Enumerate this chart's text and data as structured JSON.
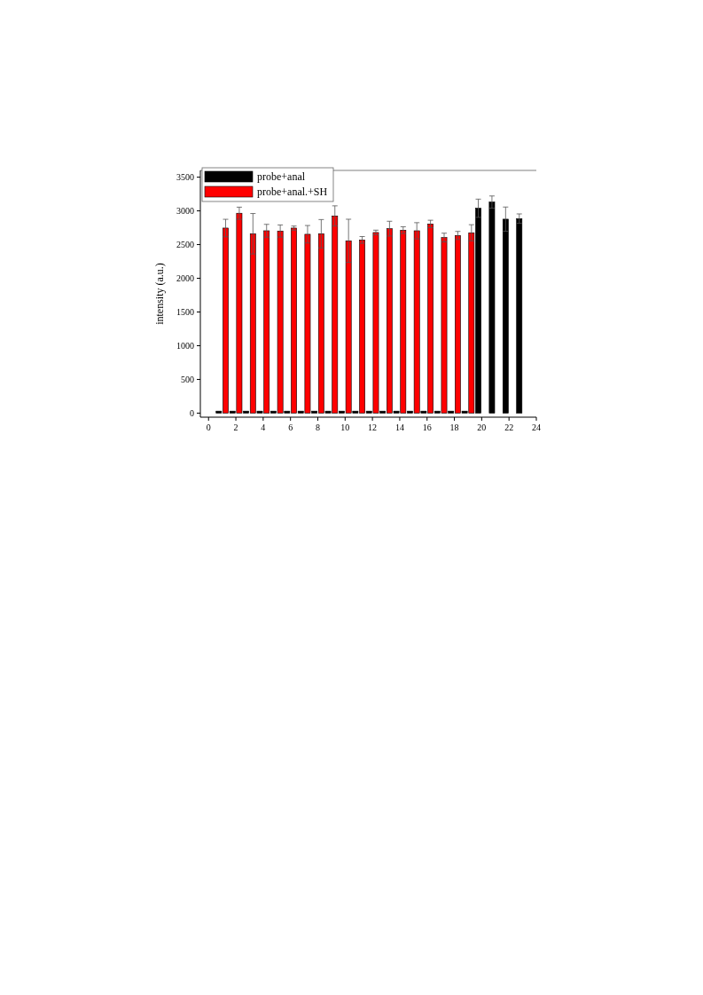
{
  "chart_data": {
    "type": "bar",
    "ylabel": "intensity (a.u.)",
    "xlim": [
      -0.6,
      24
    ],
    "ylim": [
      -60,
      3600
    ],
    "xticks": [
      0,
      2,
      4,
      6,
      8,
      10,
      12,
      14,
      16,
      18,
      20,
      22,
      24
    ],
    "yticks": [
      0,
      500,
      1000,
      1500,
      2000,
      2500,
      3000,
      3500
    ],
    "legend": "top left",
    "grid": false,
    "series": [
      {
        "name": "probe+anal",
        "color": "#000000",
        "x": [
          0.75,
          1.75,
          2.75,
          3.75,
          4.75,
          5.75,
          6.75,
          7.75,
          8.75,
          9.75,
          10.75,
          11.75,
          12.75,
          13.75,
          14.75,
          15.75,
          16.75,
          17.75,
          18.75,
          19.75,
          20.75,
          21.75,
          22.75
        ],
        "values": [
          30,
          30,
          30,
          30,
          30,
          30,
          30,
          30,
          30,
          30,
          30,
          30,
          30,
          30,
          30,
          30,
          30,
          30,
          30,
          3039,
          3131,
          2877,
          2885
        ],
        "errors": [
          null,
          null,
          null,
          null,
          null,
          null,
          null,
          null,
          null,
          null,
          null,
          null,
          null,
          null,
          null,
          null,
          null,
          null,
          null,
          135,
          90,
          180,
          70
        ]
      },
      {
        "name": "probe+anal.+SH",
        "color": "#ff0000",
        "x": [
          1.25,
          2.25,
          3.25,
          4.25,
          5.25,
          6.25,
          7.25,
          8.25,
          9.25,
          10.25,
          11.25,
          12.25,
          13.25,
          14.25,
          15.25,
          16.25,
          17.25,
          18.25,
          19.25
        ],
        "values": [
          2745,
          2965,
          2661,
          2705,
          2701,
          2745,
          2653,
          2661,
          2925,
          2556,
          2569,
          2679,
          2736,
          2714,
          2705,
          2806,
          2604,
          2635,
          2675
        ],
        "errors": [
          130,
          90,
          300,
          95,
          90,
          30,
          130,
          210,
          150,
          320,
          50,
          35,
          110,
          50,
          120,
          55,
          65,
          60,
          120
        ]
      }
    ]
  }
}
